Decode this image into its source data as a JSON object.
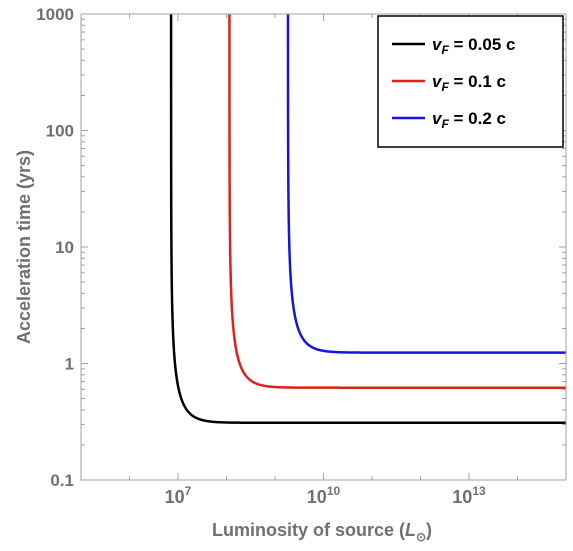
{
  "chart_data": {
    "type": "line",
    "title": "",
    "xlabel": "Luminosity of source (",
    "xlabel_symbol": "L",
    "xlabel_sub": "⊙",
    "xlabel_close": ")",
    "ylabel": "Acceleration time (yrs)",
    "x_scale": "log",
    "y_scale": "log",
    "xlim": [
      100000,
      1000000000000000.0
    ],
    "ylim": [
      0.1,
      1000
    ],
    "x_ticks": [
      {
        "value": 10000000.0,
        "base": "10",
        "exp": "7"
      },
      {
        "value": 10000000000.0,
        "base": "10",
        "exp": "10"
      },
      {
        "value": 10000000000000.0,
        "base": "10",
        "exp": "13"
      }
    ],
    "y_ticks": [
      {
        "value": 0.1,
        "label": "0.1"
      },
      {
        "value": 1,
        "label": "1"
      },
      {
        "value": 10,
        "label": "10"
      },
      {
        "value": 100,
        "label": "100"
      },
      {
        "value": 1000,
        "label": "1000"
      }
    ],
    "grid": false,
    "legend_position": "top-right",
    "series": [
      {
        "name_var": "v",
        "name_sub": "F",
        "name_rest": " = 0.05 c",
        "color": "#000000",
        "asymptote_x": 7200000.0,
        "plateau_y": 0.31
      },
      {
        "name_var": "v",
        "name_sub": "F",
        "name_rest": " = 0.1 c",
        "color": "#e0201a",
        "asymptote_x": 115000000.0,
        "plateau_y": 0.62
      },
      {
        "name_var": "v",
        "name_sub": "F",
        "name_rest": " = 0.2 c",
        "color": "#1414e0",
        "asymptote_x": 1850000000.0,
        "plateau_y": 1.24
      }
    ]
  }
}
